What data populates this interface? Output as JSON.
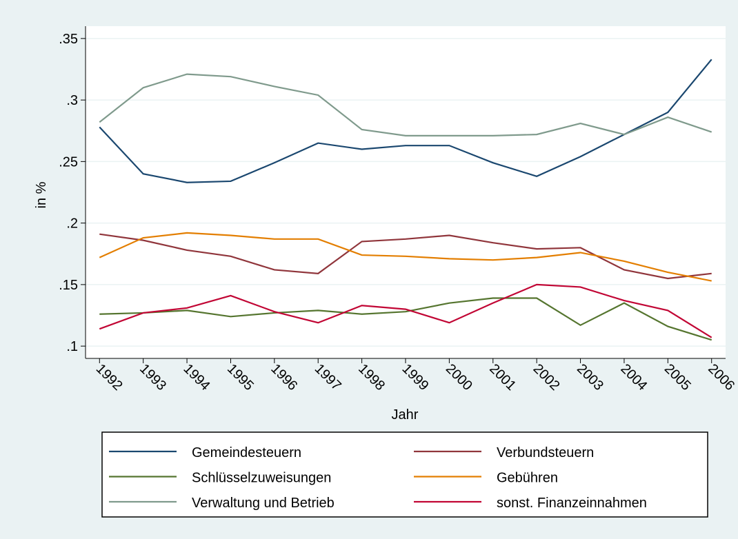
{
  "chart_data": {
    "type": "line",
    "xlabel": "Jahr",
    "ylabel": "in %",
    "x": [
      1992,
      1993,
      1994,
      1995,
      1996,
      1997,
      1998,
      1999,
      2000,
      2001,
      2002,
      2003,
      2004,
      2005,
      2006
    ],
    "xlim": [
      1991.68,
      2006.32
    ],
    "xticks": [
      1992,
      1993,
      1994,
      1995,
      1996,
      1997,
      1998,
      1999,
      2000,
      2001,
      2002,
      2003,
      2004,
      2005,
      2006
    ],
    "ylim": [
      0.09,
      0.36
    ],
    "yticks": [
      {
        "value": 0.1,
        "label": ".1"
      },
      {
        "value": 0.15,
        "label": ".15"
      },
      {
        "value": 0.2,
        "label": ".2"
      },
      {
        "value": 0.25,
        "label": ".25"
      },
      {
        "value": 0.3,
        "label": ".3"
      },
      {
        "value": 0.35,
        "label": ".35"
      }
    ],
    "grid": true,
    "legend": "bottom",
    "series": [
      {
        "name": "Gemeindesteuern",
        "color": "#1a476f",
        "values": [
          0.278,
          0.24,
          0.233,
          0.234,
          0.249,
          0.265,
          0.26,
          0.263,
          0.263,
          0.249,
          0.238,
          0.254,
          0.272,
          0.29,
          0.333
        ]
      },
      {
        "name": "Verbundsteuern",
        "color": "#90353b",
        "values": [
          0.191,
          0.186,
          0.178,
          0.173,
          0.162,
          0.159,
          0.185,
          0.187,
          0.19,
          0.184,
          0.179,
          0.18,
          0.162,
          0.155,
          0.159
        ]
      },
      {
        "name": "Schlüsselzuweisungen",
        "color": "#55752f",
        "values": [
          0.126,
          0.127,
          0.129,
          0.124,
          0.127,
          0.129,
          0.126,
          0.128,
          0.135,
          0.139,
          0.139,
          0.117,
          0.135,
          0.116,
          0.105
        ]
      },
      {
        "name": "Gebühren",
        "color": "#e37e00",
        "values": [
          0.172,
          0.188,
          0.192,
          0.19,
          0.187,
          0.187,
          0.174,
          0.173,
          0.171,
          0.17,
          0.172,
          0.176,
          0.169,
          0.16,
          0.153
        ]
      },
      {
        "name": "Verwaltung und Betrieb",
        "color": "#7f9a8c",
        "values": [
          0.282,
          0.31,
          0.321,
          0.319,
          0.311,
          0.304,
          0.276,
          0.271,
          0.271,
          0.271,
          0.272,
          0.281,
          0.272,
          0.286,
          0.274
        ]
      },
      {
        "name": "sonst. Finanzeinnahmen",
        "color": "#c10534",
        "values": [
          0.114,
          0.127,
          0.131,
          0.141,
          0.128,
          0.119,
          0.133,
          0.13,
          0.119,
          0.135,
          0.15,
          0.148,
          0.137,
          0.129,
          0.107
        ]
      }
    ]
  }
}
